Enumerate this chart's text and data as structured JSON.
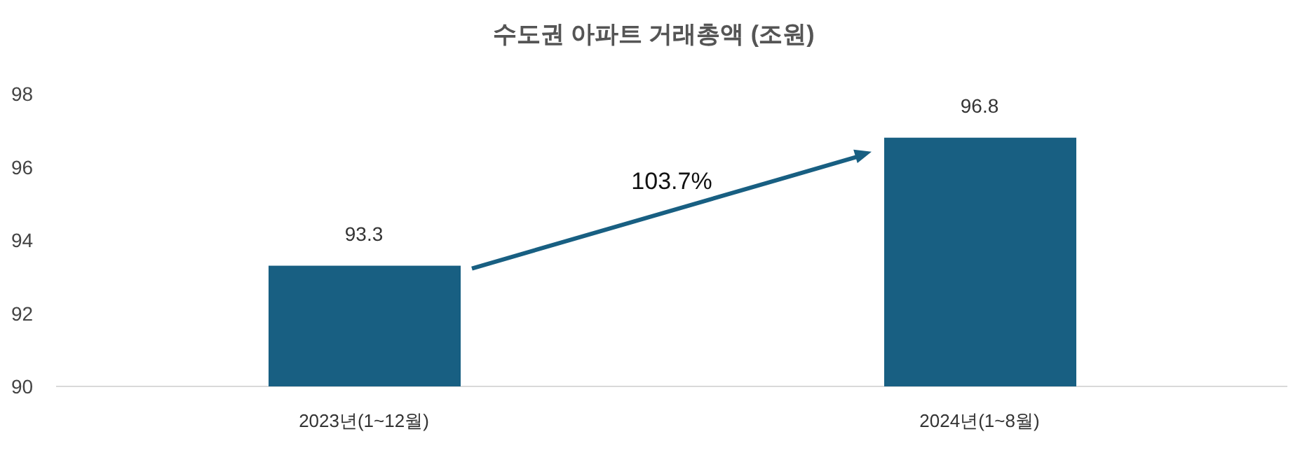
{
  "chart_data": {
    "type": "bar",
    "title": "수도권 아파트 거래총액 (조원)",
    "categories": [
      "2023년(1~12월)",
      "2024년(1~8월)"
    ],
    "values": [
      93.3,
      96.8
    ],
    "color": "#185f82",
    "ylim": [
      90,
      98
    ],
    "yticks": [
      90,
      92,
      94,
      96,
      98
    ],
    "grid": false,
    "data_labels": true,
    "annotations": [
      "103.7%"
    ]
  }
}
